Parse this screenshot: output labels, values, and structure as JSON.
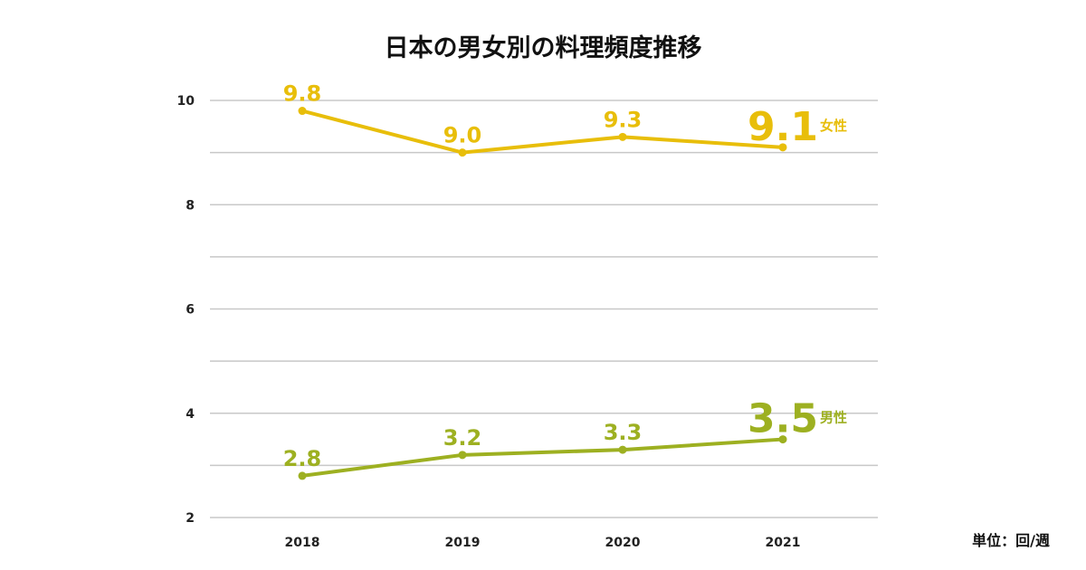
{
  "chart_data": {
    "type": "line",
    "title": "日本の男女別の料理頻度推移",
    "unit_label": "単位：回/週",
    "categories": [
      "2018",
      "2019",
      "2020",
      "2021"
    ],
    "ylim": [
      2,
      10
    ],
    "yticks": [
      2,
      3,
      4,
      5,
      6,
      7,
      8,
      9,
      10
    ],
    "ytick_labels": [
      "2",
      "",
      "4",
      "",
      "6",
      "",
      "8",
      "",
      "10"
    ],
    "grid": true,
    "series": [
      {
        "name": "女性",
        "color": "#E8BE0A",
        "values": [
          9.8,
          9.0,
          9.3,
          9.1
        ],
        "labels": [
          "9.8",
          "9.0",
          "9.3",
          "9.1"
        ]
      },
      {
        "name": "男性",
        "color": "#9DB021",
        "values": [
          2.8,
          3.2,
          3.3,
          3.5
        ],
        "labels": [
          "2.8",
          "3.2",
          "3.3",
          "3.5"
        ]
      }
    ]
  }
}
